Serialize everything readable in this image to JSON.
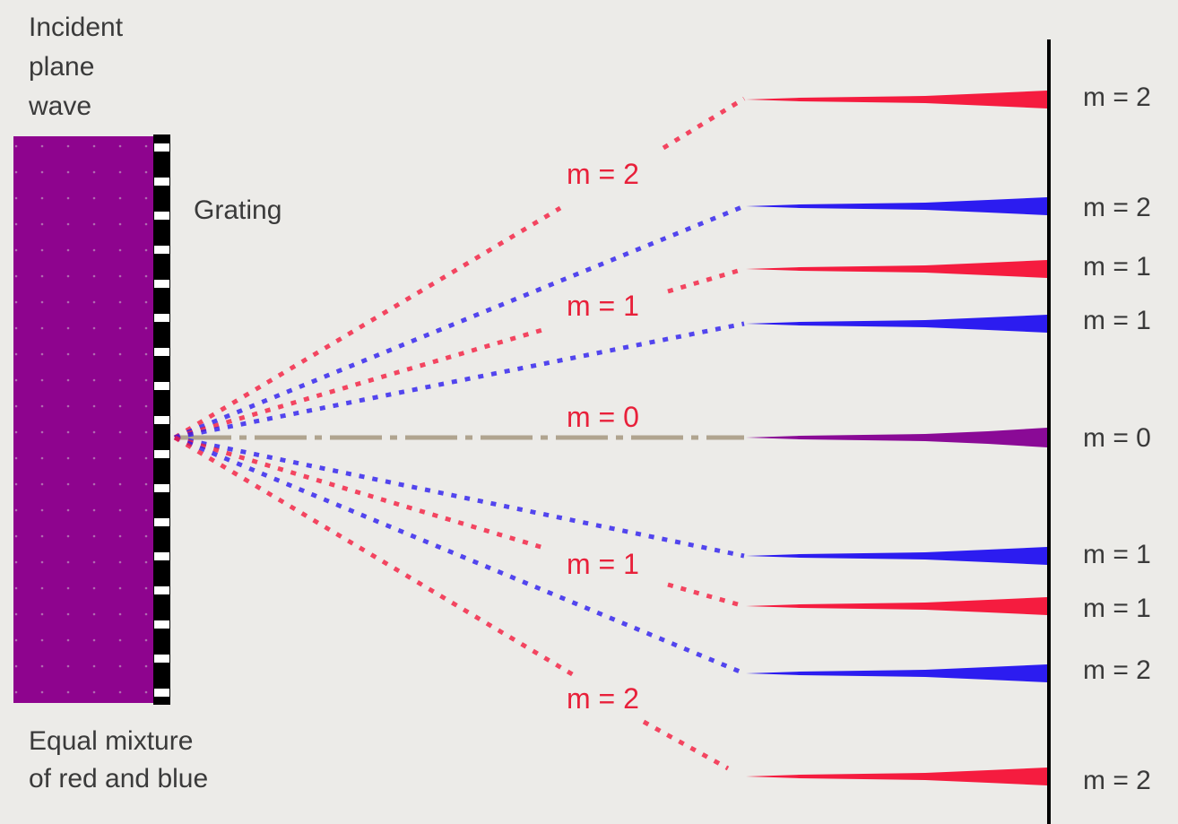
{
  "captions": {
    "incident_line1": "Incident",
    "incident_line2": "plane",
    "incident_line3": "wave",
    "grating": "Grating",
    "mixture_line1": "Equal mixture",
    "mixture_line2": "of red and blue"
  },
  "colors": {
    "background": "#ecebe8",
    "incident_wave": "#8e048e",
    "red": "#f51c3f",
    "blue": "#2c1cf0",
    "central": "#8a0a96",
    "axis": "#b0a48f",
    "grating": "#000000",
    "screen": "#000000"
  },
  "order_labels": [
    "m = 2",
    "m = 1",
    "m = 0",
    "m = 1",
    "m = 2"
  ],
  "screen_labels": [
    "m = 2",
    "m = 2",
    "m = 1",
    "m = 1",
    "m = 0",
    "m = 1",
    "m = 1",
    "m = 2",
    "m = 2"
  ],
  "beam_colors": [
    "red",
    "blue",
    "red",
    "blue",
    "central",
    "blue",
    "red",
    "blue",
    "red"
  ]
}
